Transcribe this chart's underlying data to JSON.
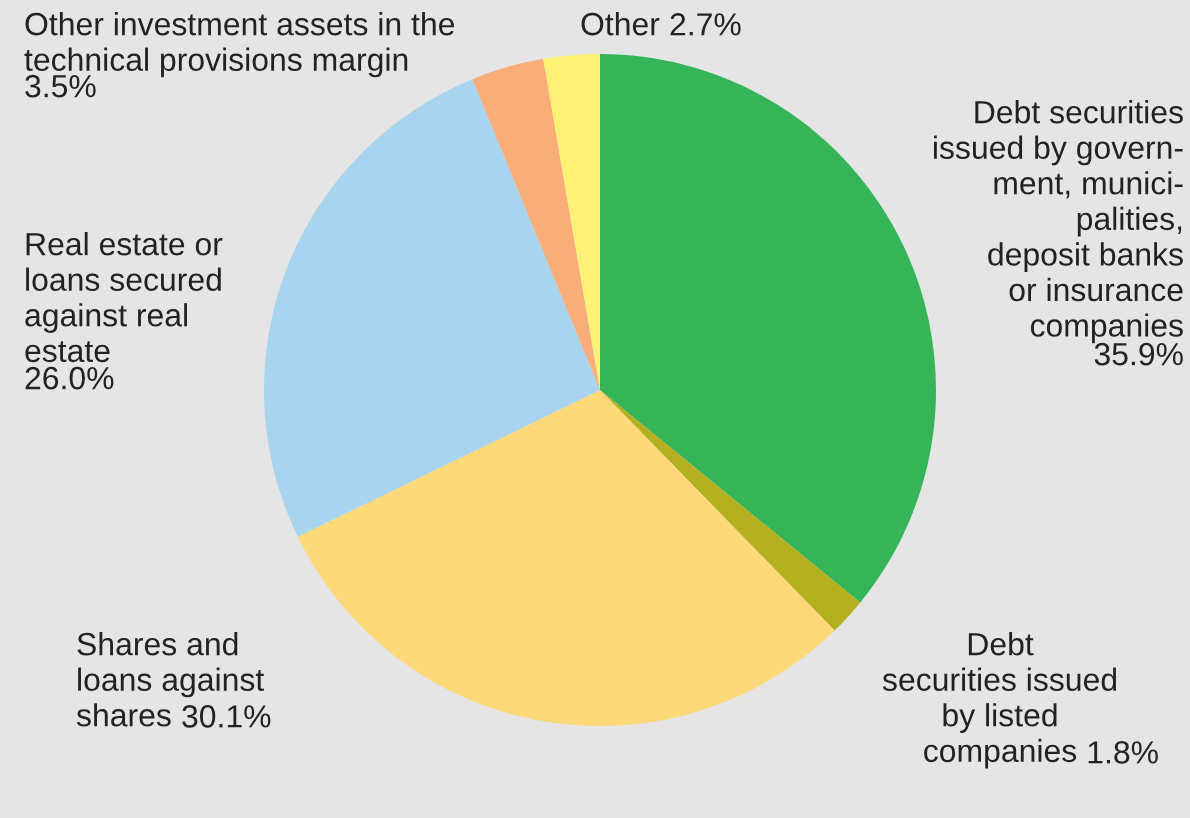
{
  "chart_data": {
    "type": "pie",
    "categories": [
      "Debt securities\nissued by govern-\nment, munici-\npalities,\ndeposit banks\nor insurance\ncompanies",
      "Debt\nsecurities issued\nby listed\ncompanies",
      "Shares and\nloans against\nshares",
      "Real estate or\nloans secured\nagainst real\nestate",
      "Other investment assets in the\ntechnical provisions margin",
      "Other"
    ],
    "values": [
      35.9,
      1.8,
      30.1,
      26.0,
      3.5,
      2.7
    ],
    "colors": [
      "#35b557",
      "#b5b020",
      "#fdd97a",
      "#a8d4ef",
      "#f9ad78",
      "#fff176"
    ],
    "value_labels": [
      "35.9%",
      "1.8%",
      "30.1%",
      "26.0%",
      "3.5%",
      "2.7%"
    ]
  }
}
